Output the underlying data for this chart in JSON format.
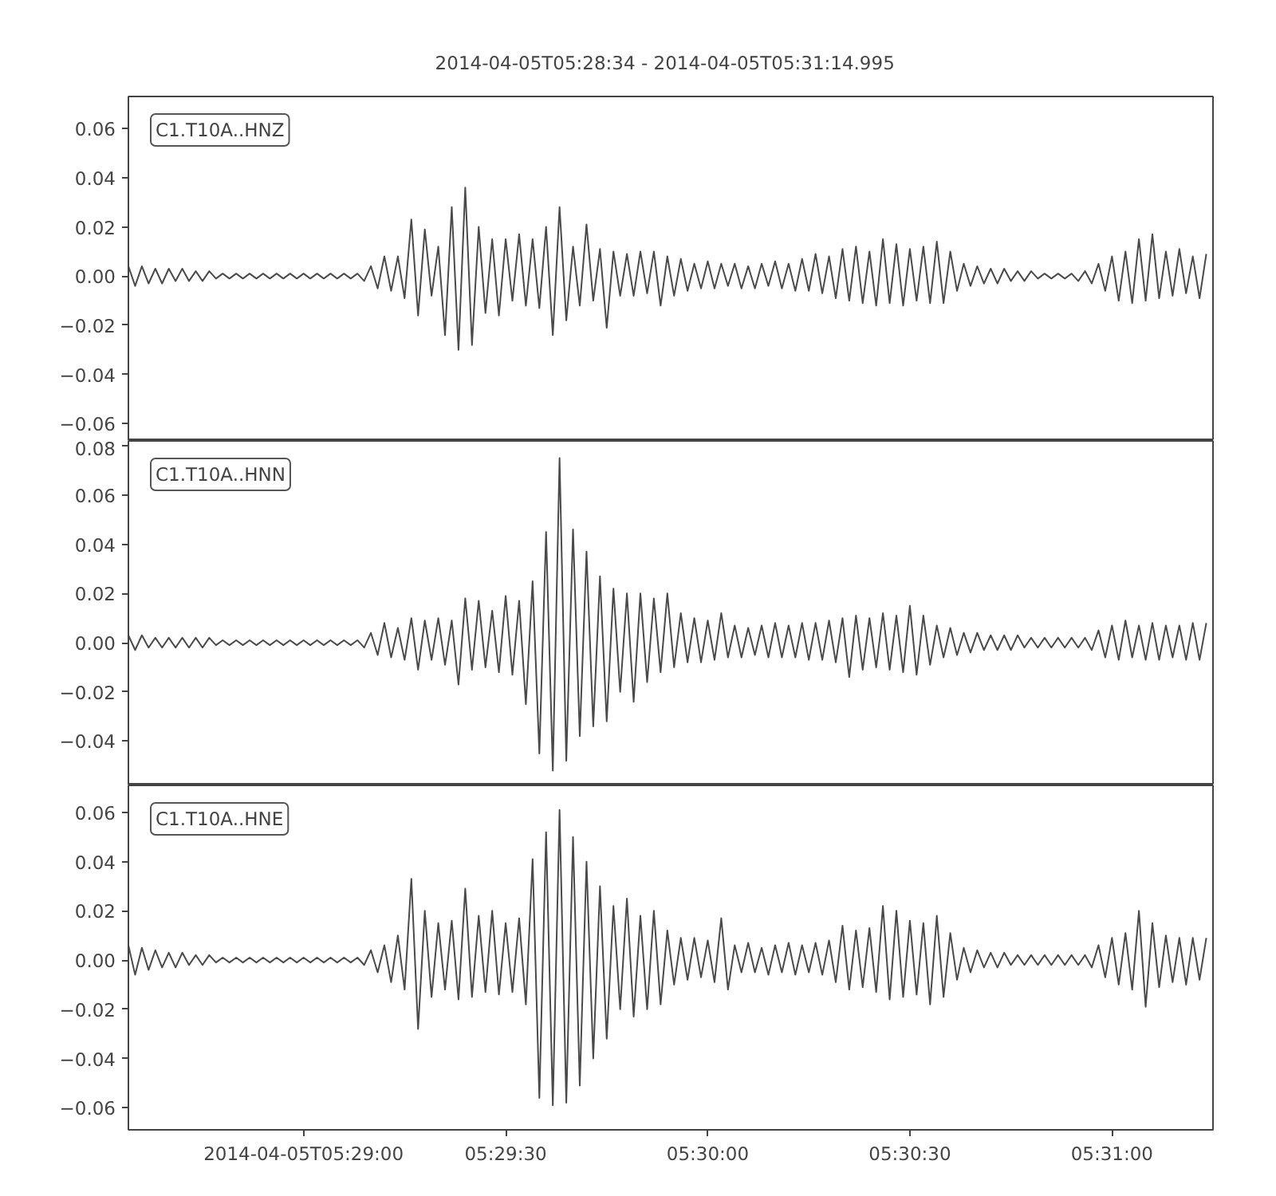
{
  "chart_data": [
    {
      "type": "line",
      "title": "2014-04-05T05:28:34  -  2014-04-05T05:31:14.995",
      "annotations": [
        "C1.T10A..HNZ"
      ],
      "tick_labels": "y",
      "xlim": [
        "2014-04-05T05:28:34",
        "2014-04-05T05:31:14.995"
      ],
      "ylim": [
        -0.067,
        0.073
      ],
      "yticks": [
        {
          "value": -0.06,
          "label": "−0.06"
        },
        {
          "value": -0.04,
          "label": "−0.04"
        },
        {
          "value": -0.02,
          "label": "−0.02"
        },
        {
          "value": 0,
          "label": "0.00"
        },
        {
          "value": 0.02,
          "label": "0.02"
        },
        {
          "value": 0.04,
          "label": "0.04"
        },
        {
          "value": 0.06,
          "label": "0.06"
        }
      ],
      "x": [
        "2014-04-05T05:28:34",
        "2014-04-05T05:28:35",
        "2014-04-05T05:28:36",
        "2014-04-05T05:28:37",
        "2014-04-05T05:28:38",
        "2014-04-05T05:28:39",
        "2014-04-05T05:28:40",
        "2014-04-05T05:28:41",
        "2014-04-05T05:28:42",
        "2014-04-05T05:28:43",
        "2014-04-05T05:28:44",
        "2014-04-05T05:28:45",
        "2014-04-05T05:28:46",
        "2014-04-05T05:28:47",
        "2014-04-05T05:28:48",
        "2014-04-05T05:28:49",
        "2014-04-05T05:28:50",
        "2014-04-05T05:28:51",
        "2014-04-05T05:28:52",
        "2014-04-05T05:28:53",
        "2014-04-05T05:28:54",
        "2014-04-05T05:28:55",
        "2014-04-05T05:28:56",
        "2014-04-05T05:28:57",
        "2014-04-05T05:28:58",
        "2014-04-05T05:28:59",
        "2014-04-05T05:29:00",
        "2014-04-05T05:29:01",
        "2014-04-05T05:29:02",
        "2014-04-05T05:29:03",
        "2014-04-05T05:29:04",
        "2014-04-05T05:29:05",
        "2014-04-05T05:29:06",
        "2014-04-05T05:29:07",
        "2014-04-05T05:29:08",
        "2014-04-05T05:29:09",
        "2014-04-05T05:29:10",
        "2014-04-05T05:29:11",
        "2014-04-05T05:29:12",
        "2014-04-05T05:29:13",
        "2014-04-05T05:29:14",
        "2014-04-05T05:29:15",
        "2014-04-05T05:29:16",
        "2014-04-05T05:29:17",
        "2014-04-05T05:29:18",
        "2014-04-05T05:29:19",
        "2014-04-05T05:29:20",
        "2014-04-05T05:29:21",
        "2014-04-05T05:29:22",
        "2014-04-05T05:29:23",
        "2014-04-05T05:29:24",
        "2014-04-05T05:29:25",
        "2014-04-05T05:29:26",
        "2014-04-05T05:29:27",
        "2014-04-05T05:29:28",
        "2014-04-05T05:29:29",
        "2014-04-05T05:29:30",
        "2014-04-05T05:29:31",
        "2014-04-05T05:29:32",
        "2014-04-05T05:29:33",
        "2014-04-05T05:29:34",
        "2014-04-05T05:29:35",
        "2014-04-05T05:29:36",
        "2014-04-05T05:29:37",
        "2014-04-05T05:29:38",
        "2014-04-05T05:29:39",
        "2014-04-05T05:29:40",
        "2014-04-05T05:29:41",
        "2014-04-05T05:29:42",
        "2014-04-05T05:29:43",
        "2014-04-05T05:29:44",
        "2014-04-05T05:29:45",
        "2014-04-05T05:29:46",
        "2014-04-05T05:29:47",
        "2014-04-05T05:29:48",
        "2014-04-05T05:29:49",
        "2014-04-05T05:29:50",
        "2014-04-05T05:29:51",
        "2014-04-05T05:29:52",
        "2014-04-05T05:29:53",
        "2014-04-05T05:29:54",
        "2014-04-05T05:29:55",
        "2014-04-05T05:29:56",
        "2014-04-05T05:29:57",
        "2014-04-05T05:29:58",
        "2014-04-05T05:29:59",
        "2014-04-05T05:30:00",
        "2014-04-05T05:30:01",
        "2014-04-05T05:30:02",
        "2014-04-05T05:30:03",
        "2014-04-05T05:30:04",
        "2014-04-05T05:30:05",
        "2014-04-05T05:30:06",
        "2014-04-05T05:30:07",
        "2014-04-05T05:30:08",
        "2014-04-05T05:30:09",
        "2014-04-05T05:30:10",
        "2014-04-05T05:30:11",
        "2014-04-05T05:30:12",
        "2014-04-05T05:30:13",
        "2014-04-05T05:30:14",
        "2014-04-05T05:30:15",
        "2014-04-05T05:30:16",
        "2014-04-05T05:30:17",
        "2014-04-05T05:30:18",
        "2014-04-05T05:30:19",
        "2014-04-05T05:30:20",
        "2014-04-05T05:30:21",
        "2014-04-05T05:30:22",
        "2014-04-05T05:30:23",
        "2014-04-05T05:30:24",
        "2014-04-05T05:30:25",
        "2014-04-05T05:30:26",
        "2014-04-05T05:30:27",
        "2014-04-05T05:30:28",
        "2014-04-05T05:30:29",
        "2014-04-05T05:30:30",
        "2014-04-05T05:30:31",
        "2014-04-05T05:30:32",
        "2014-04-05T05:30:33",
        "2014-04-05T05:30:34",
        "2014-04-05T05:30:35",
        "2014-04-05T05:30:36",
        "2014-04-05T05:30:37",
        "2014-04-05T05:30:38",
        "2014-04-05T05:30:39",
        "2014-04-05T05:30:40",
        "2014-04-05T05:30:41",
        "2014-04-05T05:30:42",
        "2014-04-05T05:30:43",
        "2014-04-05T05:30:44",
        "2014-04-05T05:30:45",
        "2014-04-05T05:30:46",
        "2014-04-05T05:30:47",
        "2014-04-05T05:30:48",
        "2014-04-05T05:30:49",
        "2014-04-05T05:30:50",
        "2014-04-05T05:30:51",
        "2014-04-05T05:30:52",
        "2014-04-05T05:30:53",
        "2014-04-05T05:30:54",
        "2014-04-05T05:30:55",
        "2014-04-05T05:30:56",
        "2014-04-05T05:30:57",
        "2014-04-05T05:30:58",
        "2014-04-05T05:30:59",
        "2014-04-05T05:31:00",
        "2014-04-05T05:31:01",
        "2014-04-05T05:31:02",
        "2014-04-05T05:31:03",
        "2014-04-05T05:31:04",
        "2014-04-05T05:31:05",
        "2014-04-05T05:31:06",
        "2014-04-05T05:31:07",
        "2014-04-05T05:31:08",
        "2014-04-05T05:31:09",
        "2014-04-05T05:31:10",
        "2014-04-05T05:31:11",
        "2014-04-05T05:31:12",
        "2014-04-05T05:31:13",
        "2014-04-05T05:31:14"
      ],
      "series": [
        {
          "color": "#4a4a4a",
          "values": [
            0.004,
            -0.004,
            0.004,
            -0.003,
            0.003,
            -0.003,
            0.003,
            -0.002,
            0.003,
            -0.002,
            0.002,
            -0.002,
            0.002,
            -0.001,
            0.001,
            -0.001,
            0.001,
            -0.001,
            0.001,
            -0.001,
            0.001,
            -0.001,
            0.001,
            -0.001,
            0.001,
            -0.001,
            0.001,
            -0.001,
            0.001,
            -0.001,
            0.001,
            -0.001,
            0.001,
            -0.001,
            0.001,
            -0.002,
            0.004,
            -0.005,
            0.008,
            -0.006,
            0.008,
            -0.009,
            0.023,
            -0.016,
            0.019,
            -0.008,
            0.012,
            -0.024,
            0.028,
            -0.03,
            0.036,
            -0.028,
            0.02,
            -0.015,
            0.015,
            -0.016,
            0.015,
            -0.01,
            0.017,
            -0.012,
            0.015,
            -0.013,
            0.02,
            -0.024,
            0.028,
            -0.018,
            0.012,
            -0.012,
            0.021,
            -0.01,
            0.011,
            -0.021,
            0.01,
            -0.008,
            0.009,
            -0.008,
            0.01,
            -0.007,
            0.01,
            -0.012,
            0.008,
            -0.008,
            0.007,
            -0.006,
            0.005,
            -0.005,
            0.006,
            -0.005,
            0.005,
            -0.004,
            0.005,
            -0.005,
            0.004,
            -0.005,
            0.005,
            -0.004,
            0.006,
            -0.005,
            0.005,
            -0.006,
            0.007,
            -0.006,
            0.009,
            -0.007,
            0.008,
            -0.009,
            0.011,
            -0.01,
            0.012,
            -0.011,
            0.01,
            -0.012,
            0.015,
            -0.011,
            0.013,
            -0.012,
            0.011,
            -0.01,
            0.012,
            -0.011,
            0.014,
            -0.011,
            0.01,
            -0.006,
            0.005,
            -0.004,
            0.004,
            -0.003,
            0.003,
            -0.003,
            0.003,
            -0.002,
            0.002,
            -0.002,
            0.002,
            -0.001,
            0.001,
            -0.001,
            0.001,
            -0.001,
            0.001,
            -0.002,
            0.002,
            -0.003,
            0.005,
            -0.006,
            0.008,
            -0.01,
            0.01,
            -0.011,
            0.015,
            -0.01,
            0.017,
            -0.009,
            0.01,
            -0.008,
            0.011,
            -0.007,
            0.008,
            -0.009,
            0.009
          ]
        }
      ]
    },
    {
      "type": "line",
      "annotations": [
        "C1.T10A..HNN"
      ],
      "tick_labels": "y",
      "xlim": [
        "2014-04-05T05:28:34",
        "2014-04-05T05:31:14.995"
      ],
      "ylim": [
        -0.058,
        0.082
      ],
      "yticks": [
        {
          "value": -0.04,
          "label": "−0.04"
        },
        {
          "value": -0.02,
          "label": "−0.02"
        },
        {
          "value": 0,
          "label": "0.00"
        },
        {
          "value": 0.02,
          "label": "0.02"
        },
        {
          "value": 0.04,
          "label": "0.04"
        },
        {
          "value": 0.06,
          "label": "0.06"
        },
        {
          "value": 0.08,
          "label": "0.08"
        }
      ],
      "x": [
        "2014-04-05T05:28:34",
        "2014-04-05T05:28:35",
        "2014-04-05T05:28:36",
        "2014-04-05T05:28:37",
        "2014-04-05T05:28:38",
        "2014-04-05T05:28:39",
        "2014-04-05T05:28:40",
        "2014-04-05T05:28:41",
        "2014-04-05T05:28:42",
        "2014-04-05T05:28:43",
        "2014-04-05T05:28:44",
        "2014-04-05T05:28:45",
        "2014-04-05T05:28:46",
        "2014-04-05T05:28:47",
        "2014-04-05T05:28:48",
        "2014-04-05T05:28:49",
        "2014-04-05T05:28:50",
        "2014-04-05T05:28:51",
        "2014-04-05T05:28:52",
        "2014-04-05T05:28:53",
        "2014-04-05T05:28:54",
        "2014-04-05T05:28:55",
        "2014-04-05T05:28:56",
        "2014-04-05T05:28:57",
        "2014-04-05T05:28:58",
        "2014-04-05T05:28:59",
        "2014-04-05T05:29:00",
        "2014-04-05T05:29:01",
        "2014-04-05T05:29:02",
        "2014-04-05T05:29:03",
        "2014-04-05T05:29:04",
        "2014-04-05T05:29:05",
        "2014-04-05T05:29:06",
        "2014-04-05T05:29:07",
        "2014-04-05T05:29:08",
        "2014-04-05T05:29:09",
        "2014-04-05T05:29:10",
        "2014-04-05T05:29:11",
        "2014-04-05T05:29:12",
        "2014-04-05T05:29:13",
        "2014-04-05T05:29:14",
        "2014-04-05T05:29:15",
        "2014-04-05T05:29:16",
        "2014-04-05T05:29:17",
        "2014-04-05T05:29:18",
        "2014-04-05T05:29:19",
        "2014-04-05T05:29:20",
        "2014-04-05T05:29:21",
        "2014-04-05T05:29:22",
        "2014-04-05T05:29:23",
        "2014-04-05T05:29:24",
        "2014-04-05T05:29:25",
        "2014-04-05T05:29:26",
        "2014-04-05T05:29:27",
        "2014-04-05T05:29:28",
        "2014-04-05T05:29:29",
        "2014-04-05T05:29:30",
        "2014-04-05T05:29:31",
        "2014-04-05T05:29:32",
        "2014-04-05T05:29:33",
        "2014-04-05T05:29:34",
        "2014-04-05T05:29:35",
        "2014-04-05T05:29:36",
        "2014-04-05T05:29:37",
        "2014-04-05T05:29:38",
        "2014-04-05T05:29:39",
        "2014-04-05T05:29:40",
        "2014-04-05T05:29:41",
        "2014-04-05T05:29:42",
        "2014-04-05T05:29:43",
        "2014-04-05T05:29:44",
        "2014-04-05T05:29:45",
        "2014-04-05T05:29:46",
        "2014-04-05T05:29:47",
        "2014-04-05T05:29:48",
        "2014-04-05T05:29:49",
        "2014-04-05T05:29:50",
        "2014-04-05T05:29:51",
        "2014-04-05T05:29:52",
        "2014-04-05T05:29:53",
        "2014-04-05T05:29:54",
        "2014-04-05T05:29:55",
        "2014-04-05T05:29:56",
        "2014-04-05T05:29:57",
        "2014-04-05T05:29:58",
        "2014-04-05T05:29:59",
        "2014-04-05T05:30:00",
        "2014-04-05T05:30:01",
        "2014-04-05T05:30:02",
        "2014-04-05T05:30:03",
        "2014-04-05T05:30:04",
        "2014-04-05T05:30:05",
        "2014-04-05T05:30:06",
        "2014-04-05T05:30:07",
        "2014-04-05T05:30:08",
        "2014-04-05T05:30:09",
        "2014-04-05T05:30:10",
        "2014-04-05T05:30:11",
        "2014-04-05T05:30:12",
        "2014-04-05T05:30:13",
        "2014-04-05T05:30:14",
        "2014-04-05T05:30:15",
        "2014-04-05T05:30:16",
        "2014-04-05T05:30:17",
        "2014-04-05T05:30:18",
        "2014-04-05T05:30:19",
        "2014-04-05T05:30:20",
        "2014-04-05T05:30:21",
        "2014-04-05T05:30:22",
        "2014-04-05T05:30:23",
        "2014-04-05T05:30:24",
        "2014-04-05T05:30:25",
        "2014-04-05T05:30:26",
        "2014-04-05T05:30:27",
        "2014-04-05T05:30:28",
        "2014-04-05T05:30:29",
        "2014-04-05T05:30:30",
        "2014-04-05T05:30:31",
        "2014-04-05T05:30:32",
        "2014-04-05T05:30:33",
        "2014-04-05T05:30:34",
        "2014-04-05T05:30:35",
        "2014-04-05T05:30:36",
        "2014-04-05T05:30:37",
        "2014-04-05T05:30:38",
        "2014-04-05T05:30:39",
        "2014-04-05T05:30:40",
        "2014-04-05T05:30:41",
        "2014-04-05T05:30:42",
        "2014-04-05T05:30:43",
        "2014-04-05T05:30:44",
        "2014-04-05T05:30:45",
        "2014-04-05T05:30:46",
        "2014-04-05T05:30:47",
        "2014-04-05T05:30:48",
        "2014-04-05T05:30:49",
        "2014-04-05T05:30:50",
        "2014-04-05T05:30:51",
        "2014-04-05T05:30:52",
        "2014-04-05T05:30:53",
        "2014-04-05T05:30:54",
        "2014-04-05T05:30:55",
        "2014-04-05T05:30:56",
        "2014-04-05T05:30:57",
        "2014-04-05T05:30:58",
        "2014-04-05T05:30:59",
        "2014-04-05T05:31:00",
        "2014-04-05T05:31:01",
        "2014-04-05T05:31:02",
        "2014-04-05T05:31:03",
        "2014-04-05T05:31:04",
        "2014-04-05T05:31:05",
        "2014-04-05T05:31:06",
        "2014-04-05T05:31:07",
        "2014-04-05T05:31:08",
        "2014-04-05T05:31:09",
        "2014-04-05T05:31:10",
        "2014-04-05T05:31:11",
        "2014-04-05T05:31:12",
        "2014-04-05T05:31:13",
        "2014-04-05T05:31:14"
      ],
      "series": [
        {
          "color": "#4a4a4a",
          "values": [
            0.003,
            -0.003,
            0.003,
            -0.002,
            0.002,
            -0.002,
            0.002,
            -0.002,
            0.002,
            -0.002,
            0.002,
            -0.002,
            0.002,
            -0.001,
            0.001,
            -0.001,
            0.001,
            -0.001,
            0.001,
            -0.001,
            0.001,
            -0.001,
            0.001,
            -0.001,
            0.001,
            -0.001,
            0.001,
            -0.001,
            0.001,
            -0.001,
            0.001,
            -0.001,
            0.001,
            -0.001,
            0.001,
            -0.002,
            0.004,
            -0.005,
            0.008,
            -0.006,
            0.006,
            -0.007,
            0.01,
            -0.011,
            0.009,
            -0.007,
            0.01,
            -0.009,
            0.009,
            -0.017,
            0.018,
            -0.011,
            0.017,
            -0.01,
            0.013,
            -0.012,
            0.019,
            -0.013,
            0.017,
            -0.025,
            0.025,
            -0.045,
            0.045,
            -0.052,
            0.075,
            -0.048,
            0.046,
            -0.038,
            0.037,
            -0.034,
            0.027,
            -0.032,
            0.022,
            -0.02,
            0.02,
            -0.024,
            0.02,
            -0.016,
            0.018,
            -0.012,
            0.02,
            -0.01,
            0.012,
            -0.008,
            0.01,
            -0.008,
            0.009,
            -0.007,
            0.012,
            -0.006,
            0.007,
            -0.006,
            0.006,
            -0.005,
            0.007,
            -0.006,
            0.008,
            -0.006,
            0.007,
            -0.006,
            0.008,
            -0.007,
            0.008,
            -0.007,
            0.009,
            -0.008,
            0.01,
            -0.014,
            0.011,
            -0.011,
            0.01,
            -0.01,
            0.012,
            -0.011,
            0.011,
            -0.012,
            0.015,
            -0.013,
            0.011,
            -0.009,
            0.007,
            -0.006,
            0.006,
            -0.005,
            0.004,
            -0.004,
            0.004,
            -0.003,
            0.003,
            -0.003,
            0.003,
            -0.003,
            0.003,
            -0.002,
            0.002,
            -0.002,
            0.002,
            -0.002,
            0.002,
            -0.002,
            0.002,
            -0.002,
            0.002,
            -0.003,
            0.005,
            -0.006,
            0.007,
            -0.007,
            0.009,
            -0.006,
            0.007,
            -0.007,
            0.008,
            -0.007,
            0.007,
            -0.006,
            0.007,
            -0.007,
            0.008,
            -0.007,
            0.008
          ]
        }
      ]
    },
    {
      "type": "line",
      "annotations": [
        "C1.T10A..HNE"
      ],
      "xlim": [
        "2014-04-05T05:28:34",
        "2014-04-05T05:31:14.995"
      ],
      "xticks": [
        {
          "value": "2014-04-05T05:29:00",
          "label": "2014-04-05T05:29:00"
        },
        {
          "value": "2014-04-05T05:29:30",
          "label": "05:29:30"
        },
        {
          "value": "2014-04-05T05:30:00",
          "label": "05:30:00"
        },
        {
          "value": "2014-04-05T05:30:30",
          "label": "05:30:30"
        },
        {
          "value": "2014-04-05T05:31:00",
          "label": "05:31:00"
        }
      ],
      "ylim": [
        -0.069,
        0.071
      ],
      "yticks": [
        {
          "value": -0.06,
          "label": "−0.06"
        },
        {
          "value": -0.04,
          "label": "−0.04"
        },
        {
          "value": -0.02,
          "label": "−0.02"
        },
        {
          "value": 0,
          "label": "0.00"
        },
        {
          "value": 0.02,
          "label": "0.02"
        },
        {
          "value": 0.04,
          "label": "0.04"
        },
        {
          "value": 0.06,
          "label": "0.06"
        }
      ],
      "x": [
        "2014-04-05T05:28:34",
        "2014-04-05T05:28:35",
        "2014-04-05T05:28:36",
        "2014-04-05T05:28:37",
        "2014-04-05T05:28:38",
        "2014-04-05T05:28:39",
        "2014-04-05T05:28:40",
        "2014-04-05T05:28:41",
        "2014-04-05T05:28:42",
        "2014-04-05T05:28:43",
        "2014-04-05T05:28:44",
        "2014-04-05T05:28:45",
        "2014-04-05T05:28:46",
        "2014-04-05T05:28:47",
        "2014-04-05T05:28:48",
        "2014-04-05T05:28:49",
        "2014-04-05T05:28:50",
        "2014-04-05T05:28:51",
        "2014-04-05T05:28:52",
        "2014-04-05T05:28:53",
        "2014-04-05T05:28:54",
        "2014-04-05T05:28:55",
        "2014-04-05T05:28:56",
        "2014-04-05T05:28:57",
        "2014-04-05T05:28:58",
        "2014-04-05T05:28:59",
        "2014-04-05T05:29:00",
        "2014-04-05T05:29:01",
        "2014-04-05T05:29:02",
        "2014-04-05T05:29:03",
        "2014-04-05T05:29:04",
        "2014-04-05T05:29:05",
        "2014-04-05T05:29:06",
        "2014-04-05T05:29:07",
        "2014-04-05T05:29:08",
        "2014-04-05T05:29:09",
        "2014-04-05T05:29:10",
        "2014-04-05T05:29:11",
        "2014-04-05T05:29:12",
        "2014-04-05T05:29:13",
        "2014-04-05T05:29:14",
        "2014-04-05T05:29:15",
        "2014-04-05T05:29:16",
        "2014-04-05T05:29:17",
        "2014-04-05T05:29:18",
        "2014-04-05T05:29:19",
        "2014-04-05T05:29:20",
        "2014-04-05T05:29:21",
        "2014-04-05T05:29:22",
        "2014-04-05T05:29:23",
        "2014-04-05T05:29:24",
        "2014-04-05T05:29:25",
        "2014-04-05T05:29:26",
        "2014-04-05T05:29:27",
        "2014-04-05T05:29:28",
        "2014-04-05T05:29:29",
        "2014-04-05T05:29:30",
        "2014-04-05T05:29:31",
        "2014-04-05T05:29:32",
        "2014-04-05T05:29:33",
        "2014-04-05T05:29:34",
        "2014-04-05T05:29:35",
        "2014-04-05T05:29:36",
        "2014-04-05T05:29:37",
        "2014-04-05T05:29:38",
        "2014-04-05T05:29:39",
        "2014-04-05T05:29:40",
        "2014-04-05T05:29:41",
        "2014-04-05T05:29:42",
        "2014-04-05T05:29:43",
        "2014-04-05T05:29:44",
        "2014-04-05T05:29:45",
        "2014-04-05T05:29:46",
        "2014-04-05T05:29:47",
        "2014-04-05T05:29:48",
        "2014-04-05T05:29:49",
        "2014-04-05T05:29:50",
        "2014-04-05T05:29:51",
        "2014-04-05T05:29:52",
        "2014-04-05T05:29:53",
        "2014-04-05T05:29:54",
        "2014-04-05T05:29:55",
        "2014-04-05T05:29:56",
        "2014-04-05T05:29:57",
        "2014-04-05T05:29:58",
        "2014-04-05T05:29:59",
        "2014-04-05T05:30:00",
        "2014-04-05T05:30:01",
        "2014-04-05T05:30:02",
        "2014-04-05T05:30:03",
        "2014-04-05T05:30:04",
        "2014-04-05T05:30:05",
        "2014-04-05T05:30:06",
        "2014-04-05T05:30:07",
        "2014-04-05T05:30:08",
        "2014-04-05T05:30:09",
        "2014-04-05T05:30:10",
        "2014-04-05T05:30:11",
        "2014-04-05T05:30:12",
        "2014-04-05T05:30:13",
        "2014-04-05T05:30:14",
        "2014-04-05T05:30:15",
        "2014-04-05T05:30:16",
        "2014-04-05T05:30:17",
        "2014-04-05T05:30:18",
        "2014-04-05T05:30:19",
        "2014-04-05T05:30:20",
        "2014-04-05T05:30:21",
        "2014-04-05T05:30:22",
        "2014-04-05T05:30:23",
        "2014-04-05T05:30:24",
        "2014-04-05T05:30:25",
        "2014-04-05T05:30:26",
        "2014-04-05T05:30:27",
        "2014-04-05T05:30:28",
        "2014-04-05T05:30:29",
        "2014-04-05T05:30:30",
        "2014-04-05T05:30:31",
        "2014-04-05T05:30:32",
        "2014-04-05T05:30:33",
        "2014-04-05T05:30:34",
        "2014-04-05T05:30:35",
        "2014-04-05T05:30:36",
        "2014-04-05T05:30:37",
        "2014-04-05T05:30:38",
        "2014-04-05T05:30:39",
        "2014-04-05T05:30:40",
        "2014-04-05T05:30:41",
        "2014-04-05T05:30:42",
        "2014-04-05T05:30:43",
        "2014-04-05T05:30:44",
        "2014-04-05T05:30:45",
        "2014-04-05T05:30:46",
        "2014-04-05T05:30:47",
        "2014-04-05T05:30:48",
        "2014-04-05T05:30:49",
        "2014-04-05T05:30:50",
        "2014-04-05T05:30:51",
        "2014-04-05T05:30:52",
        "2014-04-05T05:30:53",
        "2014-04-05T05:30:54",
        "2014-04-05T05:30:55",
        "2014-04-05T05:30:56",
        "2014-04-05T05:30:57",
        "2014-04-05T05:30:58",
        "2014-04-05T05:30:59",
        "2014-04-05T05:31:00",
        "2014-04-05T05:31:01",
        "2014-04-05T05:31:02",
        "2014-04-05T05:31:03",
        "2014-04-05T05:31:04",
        "2014-04-05T05:31:05",
        "2014-04-05T05:31:06",
        "2014-04-05T05:31:07",
        "2014-04-05T05:31:08",
        "2014-04-05T05:31:09",
        "2014-04-05T05:31:10",
        "2014-04-05T05:31:11",
        "2014-04-05T05:31:12",
        "2014-04-05T05:31:13",
        "2014-04-05T05:31:14"
      ],
      "series": [
        {
          "color": "#4a4a4a",
          "values": [
            0.006,
            -0.006,
            0.005,
            -0.004,
            0.004,
            -0.003,
            0.003,
            -0.003,
            0.003,
            -0.002,
            0.002,
            -0.002,
            0.002,
            -0.001,
            0.001,
            -0.001,
            0.001,
            -0.001,
            0.001,
            -0.001,
            0.001,
            -0.001,
            0.001,
            -0.001,
            0.001,
            -0.001,
            0.001,
            -0.001,
            0.001,
            -0.001,
            0.001,
            -0.001,
            0.001,
            -0.001,
            0.001,
            -0.002,
            0.004,
            -0.005,
            0.006,
            -0.009,
            0.01,
            -0.012,
            0.033,
            -0.028,
            0.02,
            -0.015,
            0.015,
            -0.012,
            0.016,
            -0.016,
            0.029,
            -0.015,
            0.018,
            -0.013,
            0.02,
            -0.014,
            0.015,
            -0.013,
            0.017,
            -0.018,
            0.041,
            -0.056,
            0.052,
            -0.059,
            0.061,
            -0.058,
            0.05,
            -0.051,
            0.04,
            -0.04,
            0.03,
            -0.032,
            0.022,
            -0.02,
            0.025,
            -0.023,
            0.018,
            -0.02,
            0.02,
            -0.018,
            0.012,
            -0.01,
            0.009,
            -0.008,
            0.009,
            -0.007,
            0.008,
            -0.009,
            0.017,
            -0.012,
            0.006,
            -0.005,
            0.007,
            -0.005,
            0.005,
            -0.006,
            0.006,
            -0.005,
            0.007,
            -0.006,
            0.006,
            -0.005,
            0.007,
            -0.006,
            0.008,
            -0.009,
            0.014,
            -0.012,
            0.012,
            -0.011,
            0.013,
            -0.013,
            0.022,
            -0.016,
            0.02,
            -0.015,
            0.016,
            -0.014,
            0.015,
            -0.018,
            0.018,
            -0.015,
            0.011,
            -0.008,
            0.005,
            -0.005,
            0.004,
            -0.003,
            0.003,
            -0.003,
            0.003,
            -0.002,
            0.002,
            -0.002,
            0.002,
            -0.002,
            0.002,
            -0.002,
            0.002,
            -0.002,
            0.002,
            -0.002,
            0.002,
            -0.003,
            0.006,
            -0.007,
            0.009,
            -0.01,
            0.011,
            -0.012,
            0.02,
            -0.019,
            0.015,
            -0.011,
            0.01,
            -0.009,
            0.009,
            -0.01,
            0.009,
            -0.008,
            0.009
          ]
        }
      ]
    }
  ]
}
